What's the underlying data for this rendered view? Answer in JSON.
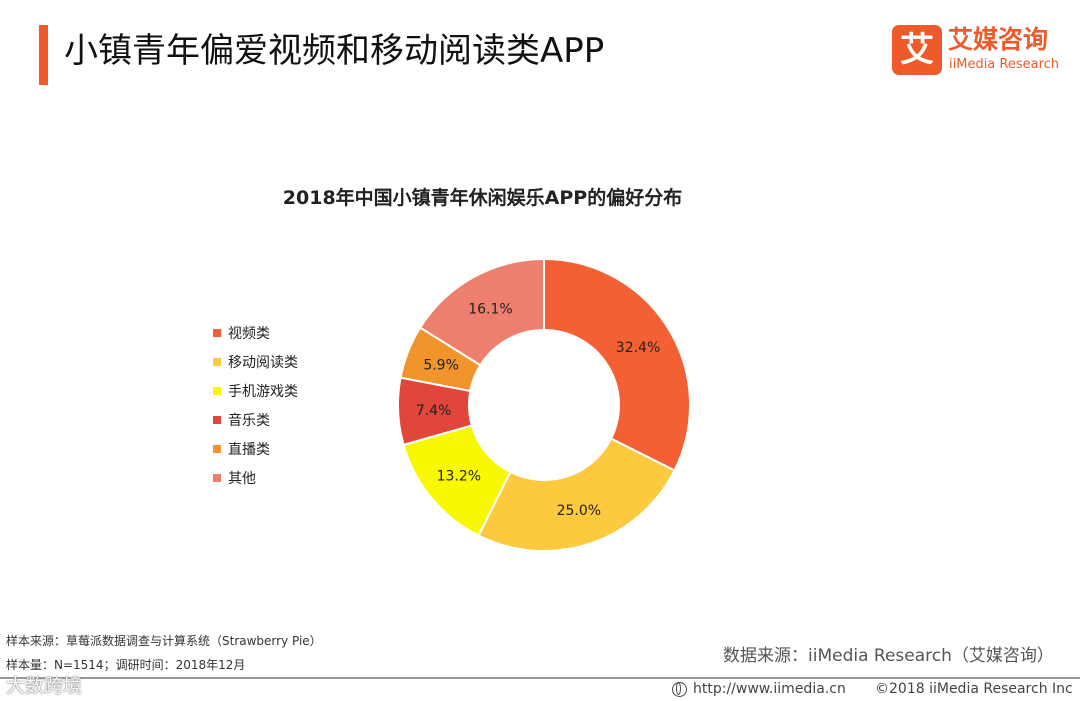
{
  "header": {
    "title": "小镇青年偏爱视频和移动阅读类APP",
    "logo_mark": "艾",
    "logo_cn": "艾媒咨询",
    "logo_en": "iiMedia Research"
  },
  "chart_data": {
    "type": "pie",
    "title": "2018年中国小镇青年休闲娱乐APP的偏好分布",
    "categories": [
      "视频类",
      "移动阅读类",
      "手机游戏类",
      "音乐类",
      "直播类",
      "其他"
    ],
    "values": [
      32.4,
      25.0,
      13.2,
      7.4,
      5.9,
      16.1
    ],
    "value_labels": [
      "32.4%",
      "25.0%",
      "13.2%",
      "7.4%",
      "5.9%",
      "16.1%"
    ],
    "colors": [
      "#f26033",
      "#fcc93f",
      "#f8f800",
      "#e0463a",
      "#f0942b",
      "#ee7f6f"
    ],
    "donut": true,
    "legend_position": "left"
  },
  "footer": {
    "sample_source": "样本来源：草莓派数据调查与计算系统（Strawberry Pie）",
    "sample_size": "样本量：N=1514；调研时间：2018年12月",
    "data_source": "数据来源：iiMedia Research（艾媒咨询）",
    "url": "http://www.iimedia.cn",
    "copyright": "©2018  iiMedia Research  Inc",
    "watermark": "大数跨境"
  }
}
